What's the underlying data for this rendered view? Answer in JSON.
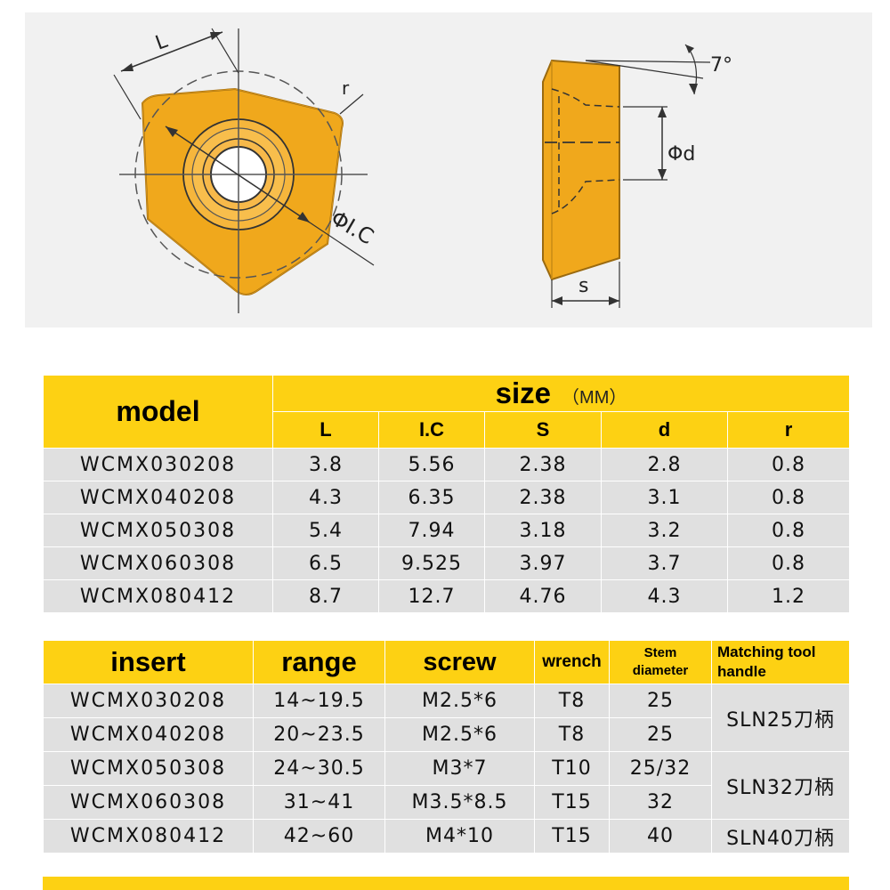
{
  "diagram": {
    "labels": {
      "L": "L",
      "r": "r",
      "ic": "ΦI.C",
      "angle": "7°",
      "d": "Φd",
      "s": "s"
    },
    "colors": {
      "insert": "#f0a81c",
      "insert_dark": "#b97a10",
      "line": "#333333"
    }
  },
  "size_table": {
    "header": {
      "model": "model",
      "size": "size",
      "unit": "（MM）"
    },
    "columns": [
      "L",
      "I.C",
      "S",
      "d",
      "r"
    ],
    "rows": [
      {
        "model": "WCMX030208",
        "L": "3.8",
        "ic": "5.56",
        "s": "2.38",
        "d": "2.8",
        "r": "0.8"
      },
      {
        "model": "WCMX040208",
        "L": "4.3",
        "ic": "6.35",
        "s": "2.38",
        "d": "3.1",
        "r": "0.8"
      },
      {
        "model": "WCMX050308",
        "L": "5.4",
        "ic": "7.94",
        "s": "3.18",
        "d": "3.2",
        "r": "0.8"
      },
      {
        "model": "WCMX060308",
        "L": "6.5",
        "ic": "9.525",
        "s": "3.97",
        "d": "3.7",
        "r": "0.8"
      },
      {
        "model": "WCMX080412",
        "L": "8.7",
        "ic": "12.7",
        "s": "4.76",
        "d": "4.3",
        "r": "1.2"
      }
    ]
  },
  "tool_table": {
    "header": {
      "insert": "insert",
      "range": "range",
      "screw": "screw",
      "wrench": "wrench",
      "stem_1": "Stem",
      "stem_2": "diameter",
      "handle_1": "Matching tool",
      "handle_2": "handle"
    },
    "rows": [
      {
        "insert": "WCMX030208",
        "range": "14~19.5",
        "screw": "M2.5*6",
        "wrench": "T8",
        "stem": "25"
      },
      {
        "insert": "WCMX040208",
        "range": "20~23.5",
        "screw": "M2.5*6",
        "wrench": "T8",
        "stem": "25"
      },
      {
        "insert": "WCMX050308",
        "range": "24~30.5",
        "screw": "M3*7",
        "wrench": "T10",
        "stem": "25/32"
      },
      {
        "insert": "WCMX060308",
        "range": "31~41",
        "screw": "M3.5*8.5",
        "wrench": "T15",
        "stem": "32"
      },
      {
        "insert": "WCMX080412",
        "range": "42~60",
        "screw": "M4*10",
        "wrench": "T15",
        "stem": "40"
      }
    ],
    "handles": [
      "SLN25刀柄",
      "SLN32刀柄",
      "SLN40刀柄"
    ]
  },
  "colors": {
    "header_yellow": "#fdd113",
    "row_gray": "#e0e0e0"
  }
}
